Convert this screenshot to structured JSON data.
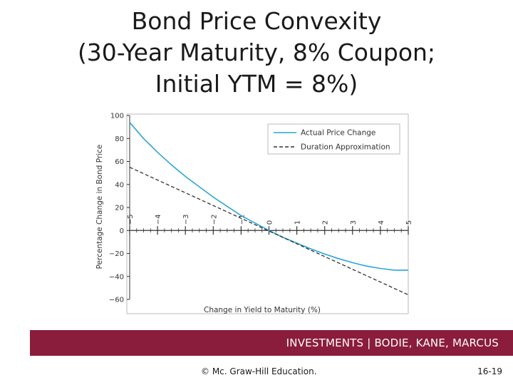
{
  "slide": {
    "title_lines": [
      "Bond Price Convexity",
      "(30-Year Maturity, 8% Coupon;",
      "Initial YTM = 8%)"
    ],
    "banner_text": "INVESTMENTS | BODIE, KANE, MARCUS",
    "footer_copyright": "© Mc. Graw-Hill Education.",
    "footer_page": "16-19",
    "banner_color": "#8a1c3c"
  },
  "chart_data": {
    "type": "line",
    "xlabel": "Change in Yield to Maturity (%)",
    "ylabel": "Percentage Change in Bond Price",
    "xlim": [
      -5,
      5
    ],
    "ylim": [
      -60,
      100
    ],
    "x_ticks": [
      -5,
      -4,
      -3,
      -2,
      -1,
      0,
      1,
      2,
      3,
      4,
      5
    ],
    "x_tick_labels": [
      "−5",
      "−4",
      "−3",
      "−2",
      "−1",
      "0",
      "1",
      "2",
      "3",
      "4",
      "5"
    ],
    "y_ticks": [
      100,
      80,
      60,
      40,
      20,
      0,
      -20,
      -40,
      -60
    ],
    "y_tick_labels": [
      "100",
      "80",
      "60",
      "40",
      "20",
      "0",
      "−20",
      "−40",
      "−60"
    ],
    "legend_position": "top-right",
    "grid": false,
    "series": [
      {
        "name": "Actual Price Change",
        "color": "#2aa6d8",
        "style": "solid",
        "x": [
          -5,
          -4.5,
          -4,
          -3.5,
          -3,
          -2.5,
          -2,
          -1.5,
          -1,
          -0.5,
          0,
          0.5,
          1,
          1.5,
          2,
          2.5,
          3,
          3.5,
          4,
          4.5,
          5
        ],
        "y": [
          94,
          80,
          68,
          57,
          47,
          38,
          29,
          21,
          13,
          6.5,
          0,
          -6,
          -11,
          -16,
          -20.5,
          -24.5,
          -28,
          -31,
          -33,
          -34.5,
          -34.5
        ]
      },
      {
        "name": "Duration Approximation",
        "color": "#333333",
        "style": "dashed",
        "x": [
          -5,
          5
        ],
        "y": [
          55,
          -56
        ]
      }
    ]
  }
}
